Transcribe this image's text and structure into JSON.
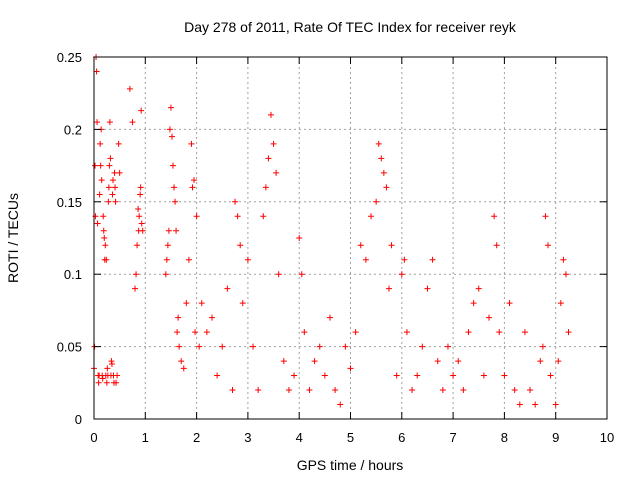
{
  "chart_data": {
    "type": "scatter",
    "title": "Day 278 of 2011, Rate Of TEC Index for receiver reyk",
    "xlabel": "GPS time / hours",
    "ylabel": "ROTI / TECUs",
    "xlim": [
      0,
      10
    ],
    "ylim": [
      0,
      0.25
    ],
    "x_ticks": [
      "0",
      "1",
      "2",
      "3",
      "4",
      "5",
      "6",
      "7",
      "8",
      "9",
      "10"
    ],
    "y_ticks": [
      "0",
      "0.05",
      "0.1",
      "0.15",
      "0.2",
      "0.25"
    ],
    "grid": true,
    "marker": "+",
    "marker_color": "#ff0000",
    "series": [
      {
        "name": "ROTI",
        "points": [
          [
            0.0,
            0.035
          ],
          [
            0.01,
            0.05
          ],
          [
            0.02,
            0.175
          ],
          [
            0.03,
            0.14
          ],
          [
            0.04,
            0.25
          ],
          [
            0.05,
            0.24
          ],
          [
            0.06,
            0.205
          ],
          [
            0.07,
            0.135
          ],
          [
            0.08,
            0.03
          ],
          [
            0.09,
            0.025
          ],
          [
            0.1,
            0.03
          ],
          [
            0.11,
            0.155
          ],
          [
            0.12,
            0.19
          ],
          [
            0.13,
            0.175
          ],
          [
            0.14,
            0.2
          ],
          [
            0.15,
            0.165
          ],
          [
            0.16,
            0.03
          ],
          [
            0.17,
            0.028
          ],
          [
            0.18,
            0.14
          ],
          [
            0.19,
            0.13
          ],
          [
            0.2,
            0.125
          ],
          [
            0.21,
            0.11
          ],
          [
            0.22,
            0.12
          ],
          [
            0.23,
            0.03
          ],
          [
            0.24,
            0.11
          ],
          [
            0.25,
            0.025
          ],
          [
            0.26,
            0.035
          ],
          [
            0.27,
            0.03
          ],
          [
            0.28,
            0.15
          ],
          [
            0.29,
            0.16
          ],
          [
            0.3,
            0.175
          ],
          [
            0.31,
            0.205
          ],
          [
            0.32,
            0.18
          ],
          [
            0.33,
            0.03
          ],
          [
            0.34,
            0.04
          ],
          [
            0.35,
            0.038
          ],
          [
            0.36,
            0.155
          ],
          [
            0.37,
            0.165
          ],
          [
            0.38,
            0.03
          ],
          [
            0.39,
            0.025
          ],
          [
            0.4,
            0.17
          ],
          [
            0.41,
            0.16
          ],
          [
            0.42,
            0.15
          ],
          [
            0.43,
            0.025
          ],
          [
            0.45,
            0.03
          ],
          [
            0.48,
            0.19
          ],
          [
            0.5,
            0.17
          ],
          [
            0.7,
            0.228
          ],
          [
            0.75,
            0.205
          ],
          [
            0.8,
            0.09
          ],
          [
            0.82,
            0.1
          ],
          [
            0.84,
            0.12
          ],
          [
            0.86,
            0.145
          ],
          [
            0.87,
            0.13
          ],
          [
            0.88,
            0.14
          ],
          [
            0.9,
            0.155
          ],
          [
            0.91,
            0.16
          ],
          [
            0.92,
            0.213
          ],
          [
            0.93,
            0.135
          ],
          [
            0.95,
            0.13
          ],
          [
            1.4,
            0.1
          ],
          [
            1.42,
            0.11
          ],
          [
            1.44,
            0.12
          ],
          [
            1.46,
            0.13
          ],
          [
            1.48,
            0.2
          ],
          [
            1.5,
            0.215
          ],
          [
            1.52,
            0.195
          ],
          [
            1.54,
            0.175
          ],
          [
            1.56,
            0.16
          ],
          [
            1.58,
            0.15
          ],
          [
            1.6,
            0.13
          ],
          [
            1.62,
            0.06
          ],
          [
            1.64,
            0.07
          ],
          [
            1.66,
            0.05
          ],
          [
            1.7,
            0.04
          ],
          [
            1.75,
            0.035
          ],
          [
            1.8,
            0.08
          ],
          [
            1.85,
            0.11
          ],
          [
            1.9,
            0.19
          ],
          [
            1.92,
            0.16
          ],
          [
            1.95,
            0.165
          ],
          [
            1.97,
            0.06
          ],
          [
            2.0,
            0.14
          ],
          [
            2.05,
            0.05
          ],
          [
            2.1,
            0.08
          ],
          [
            2.2,
            0.06
          ],
          [
            2.3,
            0.07
          ],
          [
            2.4,
            0.03
          ],
          [
            2.5,
            0.05
          ],
          [
            2.6,
            0.09
          ],
          [
            2.7,
            0.02
          ],
          [
            2.75,
            0.15
          ],
          [
            2.8,
            0.14
          ],
          [
            2.85,
            0.12
          ],
          [
            2.9,
            0.08
          ],
          [
            3.0,
            0.11
          ],
          [
            3.1,
            0.05
          ],
          [
            3.2,
            0.02
          ],
          [
            3.3,
            0.14
          ],
          [
            3.35,
            0.16
          ],
          [
            3.4,
            0.18
          ],
          [
            3.45,
            0.21
          ],
          [
            3.5,
            0.19
          ],
          [
            3.55,
            0.17
          ],
          [
            3.6,
            0.1
          ],
          [
            3.7,
            0.04
          ],
          [
            3.8,
            0.02
          ],
          [
            3.9,
            0.03
          ],
          [
            4.0,
            0.125
          ],
          [
            4.05,
            0.1
          ],
          [
            4.1,
            0.06
          ],
          [
            4.2,
            0.02
          ],
          [
            4.3,
            0.04
          ],
          [
            4.4,
            0.05
          ],
          [
            4.5,
            0.03
          ],
          [
            4.6,
            0.07
          ],
          [
            4.7,
            0.02
          ],
          [
            4.8,
            0.01
          ],
          [
            4.9,
            0.05
          ],
          [
            5.0,
            0.035
          ],
          [
            5.1,
            0.06
          ],
          [
            5.2,
            0.12
          ],
          [
            5.3,
            0.11
          ],
          [
            5.4,
            0.14
          ],
          [
            5.5,
            0.15
          ],
          [
            5.55,
            0.19
          ],
          [
            5.6,
            0.18
          ],
          [
            5.65,
            0.17
          ],
          [
            5.7,
            0.16
          ],
          [
            5.75,
            0.09
          ],
          [
            5.8,
            0.12
          ],
          [
            5.9,
            0.03
          ],
          [
            6.0,
            0.1
          ],
          [
            6.05,
            0.11
          ],
          [
            6.1,
            0.06
          ],
          [
            6.2,
            0.02
          ],
          [
            6.3,
            0.03
          ],
          [
            6.4,
            0.05
          ],
          [
            6.5,
            0.09
          ],
          [
            6.6,
            0.11
          ],
          [
            6.7,
            0.04
          ],
          [
            6.8,
            0.02
          ],
          [
            6.9,
            0.05
          ],
          [
            7.0,
            0.03
          ],
          [
            7.1,
            0.04
          ],
          [
            7.2,
            0.02
          ],
          [
            7.3,
            0.06
          ],
          [
            7.4,
            0.08
          ],
          [
            7.5,
            0.09
          ],
          [
            7.6,
            0.03
          ],
          [
            7.7,
            0.07
          ],
          [
            7.8,
            0.14
          ],
          [
            7.85,
            0.12
          ],
          [
            7.9,
            0.06
          ],
          [
            8.0,
            0.03
          ],
          [
            8.1,
            0.08
          ],
          [
            8.2,
            0.02
          ],
          [
            8.3,
            0.01
          ],
          [
            8.4,
            0.06
          ],
          [
            8.5,
            0.02
          ],
          [
            8.6,
            0.01
          ],
          [
            8.7,
            0.04
          ],
          [
            8.75,
            0.05
          ],
          [
            8.8,
            0.14
          ],
          [
            8.85,
            0.12
          ],
          [
            8.9,
            0.03
          ],
          [
            9.0,
            0.01
          ],
          [
            9.05,
            0.04
          ],
          [
            9.1,
            0.08
          ],
          [
            9.15,
            0.11
          ],
          [
            9.2,
            0.1
          ],
          [
            9.25,
            0.06
          ]
        ]
      }
    ]
  }
}
